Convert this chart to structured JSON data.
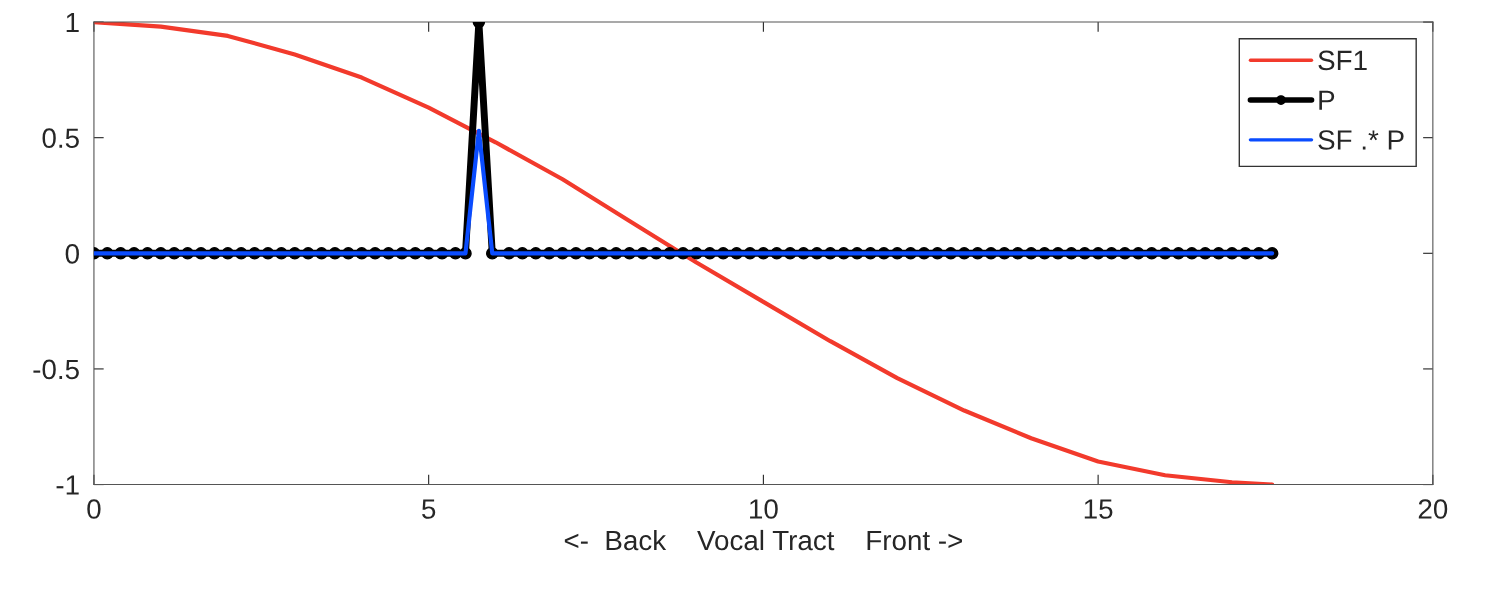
{
  "chart_data": {
    "type": "line",
    "xlabel": "<-  Back    Vocal Tract    Front ->",
    "xlim": [
      0,
      20
    ],
    "xticks": [
      0,
      5,
      10,
      15,
      20
    ],
    "ylim": [
      -1,
      1
    ],
    "yticks": [
      -1,
      -0.5,
      0,
      0.5,
      1
    ],
    "grid": false,
    "legend": "top right",
    "series": [
      {
        "name": "SF1",
        "color": "#f23a2c",
        "marker": "none",
        "x": [
          0,
          1,
          2,
          3,
          4,
          5,
          6,
          7,
          8,
          9,
          10,
          11,
          12,
          13,
          14,
          15,
          16,
          17,
          17.6
        ],
        "values": [
          1,
          0.98,
          0.94,
          0.86,
          0.76,
          0.63,
          0.48,
          0.32,
          0.14,
          -0.04,
          -0.21,
          -0.38,
          -0.54,
          -0.68,
          -0.8,
          -0.9,
          -0.96,
          -0.99,
          -1
        ]
      },
      {
        "name": "P",
        "color": "#000000",
        "marker": "circle",
        "x": [
          0,
          0.2,
          0.4,
          0.6,
          0.8,
          1,
          1.2,
          1.4,
          1.6,
          1.8,
          2,
          2.2,
          2.4,
          2.6,
          2.8,
          3,
          3.2,
          3.4,
          3.6,
          3.8,
          4,
          4.2,
          4.4,
          4.6,
          4.8,
          5,
          5.2,
          5.4,
          5.55,
          5.75,
          5.95,
          6.2,
          6.4,
          6.6,
          6.8,
          7,
          7.2,
          7.4,
          7.6,
          7.8,
          8,
          8.2,
          8.4,
          8.6,
          8.8,
          9,
          9.2,
          9.4,
          9.6,
          9.8,
          10,
          10.2,
          10.4,
          10.6,
          10.8,
          11,
          11.2,
          11.4,
          11.6,
          11.8,
          12,
          12.2,
          12.4,
          12.6,
          12.8,
          13,
          13.2,
          13.4,
          13.6,
          13.8,
          14,
          14.2,
          14.4,
          14.6,
          14.8,
          15,
          15.2,
          15.4,
          15.6,
          15.8,
          16,
          16.2,
          16.4,
          16.6,
          16.8,
          17,
          17.2,
          17.4,
          17.6
        ],
        "values": [
          0,
          0,
          0,
          0,
          0,
          0,
          0,
          0,
          0,
          0,
          0,
          0,
          0,
          0,
          0,
          0,
          0,
          0,
          0,
          0,
          0,
          0,
          0,
          0,
          0,
          0,
          0,
          0,
          0,
          1,
          0,
          0,
          0,
          0,
          0,
          0,
          0,
          0,
          0,
          0,
          0,
          0,
          0,
          0,
          0,
          0,
          0,
          0,
          0,
          0,
          0,
          0,
          0,
          0,
          0,
          0,
          0,
          0,
          0,
          0,
          0,
          0,
          0,
          0,
          0,
          0,
          0,
          0,
          0,
          0,
          0,
          0,
          0,
          0,
          0,
          0,
          0,
          0,
          0,
          0,
          0,
          0,
          0,
          0,
          0,
          0,
          0,
          0,
          0
        ]
      },
      {
        "name": "SF .* P",
        "color": "#0a4cff",
        "marker": "none",
        "x": [
          0,
          0.2,
          0.4,
          0.6,
          0.8,
          1,
          1.2,
          1.4,
          1.6,
          1.8,
          2,
          2.2,
          2.4,
          2.6,
          2.8,
          3,
          3.2,
          3.4,
          3.6,
          3.8,
          4,
          4.2,
          4.4,
          4.6,
          4.8,
          5,
          5.2,
          5.4,
          5.55,
          5.75,
          5.95,
          6.2,
          6.4,
          6.6,
          6.8,
          7,
          7.2,
          7.4,
          7.6,
          7.8,
          8,
          8.2,
          8.4,
          8.6,
          8.8,
          9,
          9.2,
          9.4,
          9.6,
          9.8,
          10,
          10.2,
          10.4,
          10.6,
          10.8,
          11,
          11.2,
          11.4,
          11.6,
          11.8,
          12,
          12.2,
          12.4,
          12.6,
          12.8,
          13,
          13.2,
          13.4,
          13.6,
          13.8,
          14,
          14.2,
          14.4,
          14.6,
          14.8,
          15,
          15.2,
          15.4,
          15.6,
          15.8,
          16,
          16.2,
          16.4,
          16.6,
          16.8,
          17,
          17.2,
          17.4,
          17.6
        ],
        "values": [
          0,
          0,
          0,
          0,
          0,
          0,
          0,
          0,
          0,
          0,
          0,
          0,
          0,
          0,
          0,
          0,
          0,
          0,
          0,
          0,
          0,
          0,
          0,
          0,
          0,
          0,
          0,
          0,
          0,
          0.53,
          0,
          0,
          0,
          0,
          0,
          0,
          0,
          0,
          0,
          0,
          0,
          0,
          0,
          0,
          0,
          0,
          0,
          0,
          0,
          0,
          0,
          0,
          0,
          0,
          0,
          0,
          0,
          0,
          0,
          0,
          0,
          0,
          0,
          0,
          0,
          0,
          0,
          0,
          0,
          0,
          0,
          0,
          0,
          0,
          0,
          0,
          0,
          0,
          0,
          0,
          0,
          0,
          0,
          0,
          0,
          0,
          0,
          0,
          0
        ]
      }
    ]
  }
}
